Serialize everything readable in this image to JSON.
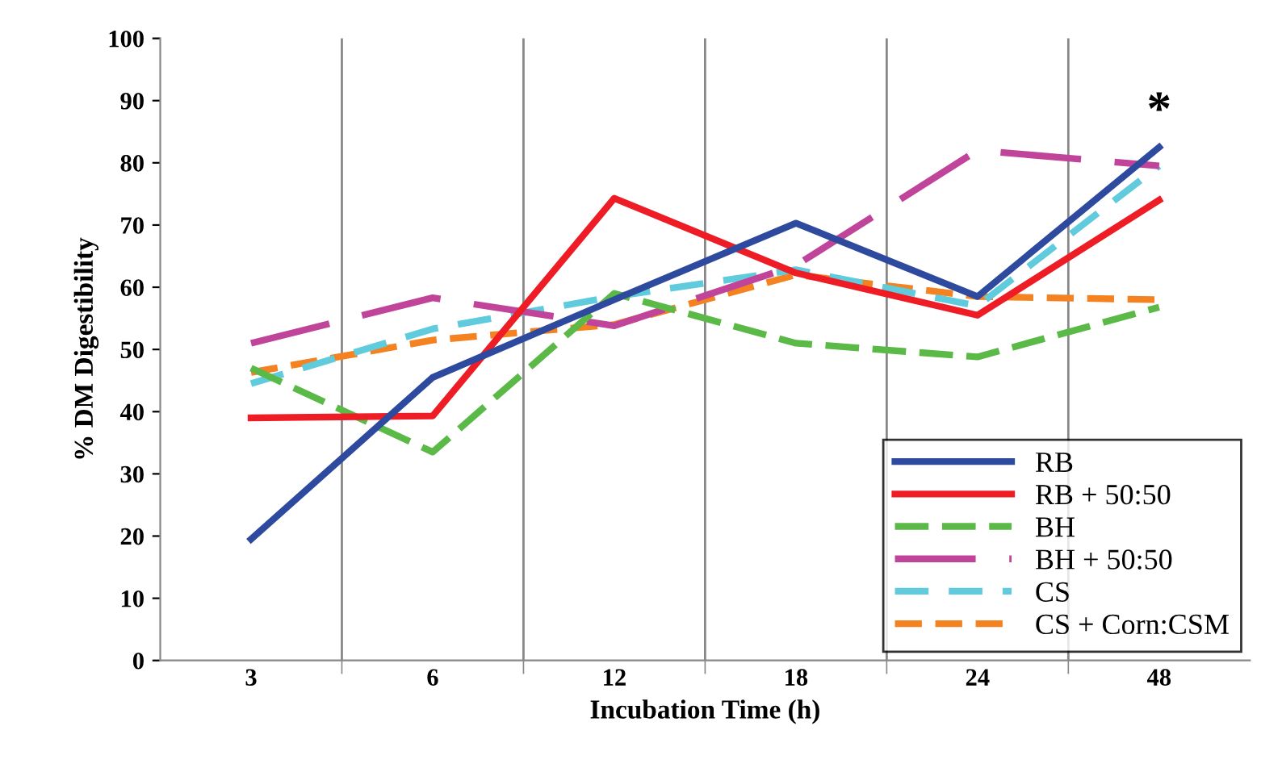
{
  "chart_data": {
    "type": "line",
    "xlabel": "Incubation Time (h)",
    "ylabel": "% DM Digestibility",
    "categories": [
      "3",
      "6",
      "12",
      "18",
      "24",
      "48"
    ],
    "ylim": [
      0,
      100
    ],
    "yticks": [
      0,
      10,
      20,
      30,
      40,
      50,
      60,
      70,
      80,
      90,
      100
    ],
    "grid": "x",
    "legend": "bottom right",
    "marker": "none",
    "series": [
      {
        "name": "RB",
        "color": "#2e4a9e",
        "line_style": "solid",
        "values": [
          19.5,
          45.5,
          58,
          70.3,
          58.5,
          82.5
        ]
      },
      {
        "name": "RB + 50:50",
        "color": "#ee1c25",
        "line_style": "solid",
        "values": [
          39,
          39.3,
          74.3,
          62.3,
          55.5,
          74
        ]
      },
      {
        "name": "BH",
        "color": "#5bb947",
        "line_style": "dashed",
        "values": [
          47,
          33.5,
          59,
          51,
          48.8,
          56.8
        ]
      },
      {
        "name": "BH + 50:50",
        "color": "#c1449b",
        "line_style": "dashed",
        "values": [
          51,
          58.3,
          53.8,
          63.5,
          82,
          79.5
        ]
      },
      {
        "name": "CS",
        "color": "#5fcbdc",
        "line_style": "dashed",
        "values": [
          44.5,
          53.3,
          58.5,
          62.8,
          57,
          79.5
        ]
      },
      {
        "name": "CS + Corn:CSM",
        "color": "#f58220",
        "line_style": "dashed",
        "values": [
          46.3,
          51.5,
          54,
          62,
          58.5,
          58
        ]
      }
    ],
    "annotations": [
      "*"
    ]
  }
}
